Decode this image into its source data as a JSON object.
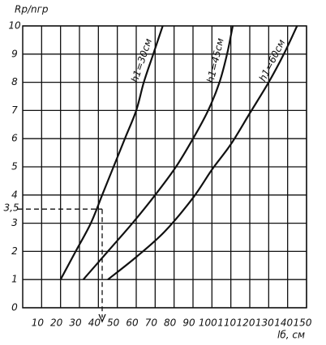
{
  "chart_data": {
    "type": "line",
    "y_label": "Rр/nгр",
    "x_label": "lб, см",
    "xlim": [
      0,
      150
    ],
    "ylim": [
      0,
      10
    ],
    "xticks": [
      10,
      20,
      30,
      40,
      50,
      60,
      70,
      80,
      90,
      100,
      110,
      120,
      130,
      140,
      150
    ],
    "yticks": [
      0,
      1,
      2,
      3,
      4,
      5,
      6,
      7,
      8,
      9,
      10
    ],
    "grid": true,
    "series": [
      {
        "name": "h1=30см",
        "color": "#111111",
        "x": [
          20,
          28,
          36,
          42,
          48,
          54,
          60,
          64,
          69,
          74
        ],
        "values": [
          1,
          2,
          3,
          4,
          5,
          6,
          7,
          8,
          9,
          10
        ]
      },
      {
        "name": "h1=45см",
        "color": "#111111",
        "x": [
          32,
          45,
          58,
          70,
          81,
          90,
          98,
          104,
          108,
          111
        ],
        "values": [
          1,
          2,
          3,
          4,
          5,
          6,
          7,
          8,
          9,
          10
        ]
      },
      {
        "name": "h1=60см",
        "color": "#111111",
        "x": [
          45,
          60,
          75,
          90,
          100,
          110,
          120,
          130,
          138,
          145
        ],
        "values": [
          1,
          1.8,
          2.7,
          3.9,
          4.9,
          5.8,
          6.9,
          8,
          9,
          10
        ]
      }
    ],
    "marker": {
      "x": 42,
      "y": {
        "value": 3.5,
        "label": "3,5"
      }
    }
  }
}
